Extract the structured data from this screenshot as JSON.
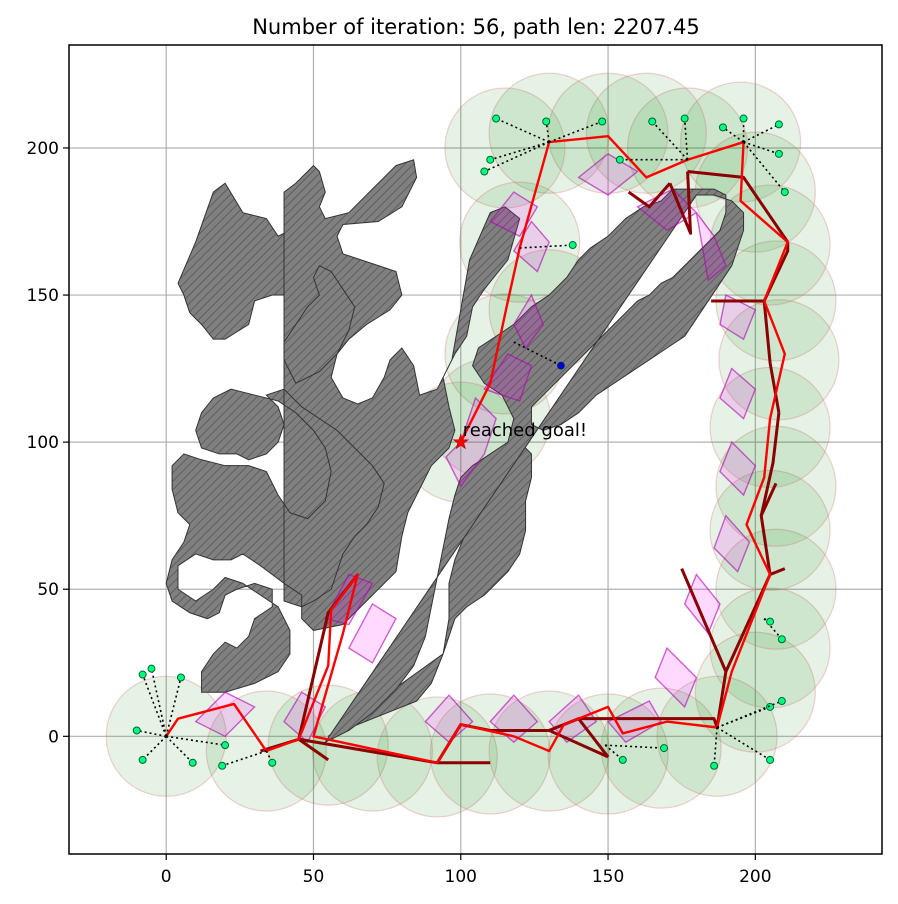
{
  "chart_data": {
    "type": "scatter",
    "title": "Number of iteration: 56, path len: 2207.45",
    "xlabel": "",
    "ylabel": "",
    "xlim": [
      -33,
      243
    ],
    "ylim": [
      -40,
      235
    ],
    "x_ticks": [
      0,
      50,
      100,
      150,
      200
    ],
    "y_ticks": [
      0,
      50,
      100,
      150,
      200
    ],
    "x_tick_labels": [
      "0",
      "50",
      "100",
      "150",
      "200"
    ],
    "y_tick_labels": [
      "0",
      "50",
      "100",
      "150",
      "200"
    ],
    "grid": true,
    "annotation": "reached goal!",
    "goal": [
      100,
      100
    ],
    "colors": {
      "obstacle_fill": "#808080",
      "path": "#ff0000",
      "tree": "#8b0000",
      "node": "#00ff7f",
      "region": "#008000",
      "bubble": "#ff00ff",
      "goal": "#ff0000"
    },
    "obstacles": [
      [
        [
          4,
          154
        ],
        [
          10,
          168
        ],
        [
          16,
          185
        ],
        [
          20,
          188
        ],
        [
          26,
          178
        ],
        [
          34,
          176
        ],
        [
          38,
          170
        ],
        [
          42,
          172
        ],
        [
          46,
          168
        ],
        [
          42,
          160
        ],
        [
          46,
          154
        ],
        [
          42,
          150
        ],
        [
          36,
          150
        ],
        [
          30,
          148
        ],
        [
          28,
          140
        ],
        [
          20,
          135
        ],
        [
          16,
          135
        ],
        [
          12,
          140
        ],
        [
          8,
          144
        ],
        [
          6,
          150
        ]
      ],
      [
        [
          40,
          185
        ],
        [
          44,
          188
        ],
        [
          48,
          192
        ],
        [
          50,
          194
        ],
        [
          52,
          192
        ],
        [
          54,
          185
        ],
        [
          52,
          180
        ],
        [
          54,
          176
        ],
        [
          62,
          178
        ],
        [
          70,
          186
        ],
        [
          78,
          194
        ],
        [
          84,
          196
        ],
        [
          85,
          190
        ],
        [
          80,
          180
        ],
        [
          72,
          175
        ],
        [
          60,
          174
        ],
        [
          58,
          170
        ],
        [
          60,
          164
        ],
        [
          72,
          160
        ],
        [
          78,
          158
        ],
        [
          80,
          150
        ],
        [
          76,
          145
        ],
        [
          68,
          140
        ],
        [
          62,
          135
        ],
        [
          58,
          130
        ],
        [
          56,
          122
        ],
        [
          60,
          115
        ],
        [
          65,
          113
        ],
        [
          70,
          115
        ],
        [
          74,
          122
        ],
        [
          76,
          128
        ],
        [
          80,
          132
        ],
        [
          84,
          126
        ],
        [
          86,
          116
        ],
        [
          92,
          118
        ],
        [
          97,
          128
        ],
        [
          100,
          145
        ],
        [
          103,
          162
        ],
        [
          110,
          178
        ],
        [
          115,
          180
        ],
        [
          120,
          176
        ],
        [
          116,
          162
        ],
        [
          108,
          152
        ],
        [
          104,
          146
        ],
        [
          102,
          136
        ],
        [
          98,
          130
        ],
        [
          94,
          122
        ],
        [
          96,
          112
        ],
        [
          98,
          104
        ],
        [
          96,
          98
        ],
        [
          90,
          92
        ],
        [
          86,
          84
        ],
        [
          82,
          76
        ],
        [
          80,
          68
        ],
        [
          78,
          56
        ],
        [
          70,
          48
        ],
        [
          60,
          38
        ],
        [
          50,
          36
        ],
        [
          46,
          40
        ],
        [
          46,
          48
        ],
        [
          40,
          52
        ],
        [
          32,
          58
        ],
        [
          26,
          62
        ],
        [
          22,
          60
        ],
        [
          16,
          60
        ],
        [
          10,
          62
        ],
        [
          4,
          58
        ],
        [
          4,
          50
        ],
        [
          10,
          46
        ],
        [
          16,
          50
        ],
        [
          20,
          54
        ],
        [
          26,
          52
        ],
        [
          32,
          48
        ],
        [
          38,
          44
        ],
        [
          42,
          36
        ],
        [
          42,
          28
        ],
        [
          38,
          22
        ],
        [
          30,
          18
        ],
        [
          20,
          15
        ],
        [
          12,
          15
        ],
        [
          12,
          22
        ],
        [
          16,
          28
        ],
        [
          20,
          32
        ],
        [
          24,
          30
        ],
        [
          28,
          34
        ],
        [
          30,
          40
        ],
        [
          36,
          44
        ],
        [
          36,
          50
        ],
        [
          30,
          52
        ],
        [
          24,
          50
        ],
        [
          20,
          48
        ],
        [
          18,
          42
        ],
        [
          14,
          40
        ],
        [
          8,
          42
        ],
        [
          2,
          46
        ],
        [
          0,
          52
        ],
        [
          2,
          60
        ],
        [
          6,
          66
        ],
        [
          8,
          72
        ],
        [
          4,
          76
        ],
        [
          2,
          84
        ],
        [
          2,
          92
        ],
        [
          6,
          96
        ],
        [
          12,
          94
        ],
        [
          20,
          92
        ],
        [
          28,
          92
        ],
        [
          34,
          90
        ],
        [
          38,
          82
        ],
        [
          42,
          76
        ],
        [
          48,
          74
        ],
        [
          54,
          80
        ],
        [
          56,
          90
        ],
        [
          54,
          98
        ],
        [
          50,
          104
        ],
        [
          44,
          110
        ],
        [
          38,
          114
        ],
        [
          30,
          116
        ],
        [
          22,
          118
        ],
        [
          16,
          115
        ],
        [
          12,
          110
        ],
        [
          10,
          104
        ],
        [
          12,
          98
        ],
        [
          18,
          96
        ],
        [
          24,
          96
        ],
        [
          28,
          94
        ],
        [
          34,
          96
        ],
        [
          38,
          100
        ],
        [
          40,
          106
        ],
        [
          38,
          112
        ],
        [
          34,
          116
        ],
        [
          40,
          118
        ],
        [
          46,
          112
        ],
        [
          52,
          108
        ],
        [
          58,
          104
        ],
        [
          64,
          98
        ],
        [
          70,
          92
        ],
        [
          74,
          86
        ],
        [
          72,
          78
        ],
        [
          68,
          72
        ],
        [
          64,
          68
        ],
        [
          60,
          62
        ],
        [
          58,
          56
        ],
        [
          56,
          50
        ],
        [
          50,
          46
        ],
        [
          46,
          44
        ],
        [
          40,
          46
        ]
      ],
      [
        [
          44,
          120
        ],
        [
          52,
          124
        ],
        [
          58,
          130
        ],
        [
          62,
          138
        ],
        [
          64,
          146
        ],
        [
          60,
          152
        ],
        [
          56,
          158
        ],
        [
          52,
          160
        ],
        [
          50,
          156
        ],
        [
          52,
          150
        ],
        [
          48,
          146
        ],
        [
          44,
          140
        ],
        [
          40,
          134
        ],
        [
          40,
          128
        ]
      ],
      [
        [
          55,
          0
        ],
        [
          65,
          4
        ],
        [
          75,
          8
        ],
        [
          85,
          12
        ],
        [
          90,
          18
        ],
        [
          94,
          28
        ],
        [
          96,
          40
        ],
        [
          96,
          52
        ],
        [
          98,
          60
        ],
        [
          102,
          70
        ],
        [
          104,
          78
        ],
        [
          106,
          84
        ],
        [
          108,
          90
        ],
        [
          112,
          95
        ],
        [
          116,
          98
        ],
        [
          120,
          100
        ],
        [
          124,
          96
        ],
        [
          124,
          88
        ],
        [
          122,
          80
        ],
        [
          122,
          70
        ],
        [
          120,
          62
        ],
        [
          116,
          56
        ],
        [
          112,
          52
        ],
        [
          108,
          48
        ],
        [
          102,
          44
        ],
        [
          98,
          40
        ],
        [
          96,
          34
        ],
        [
          94,
          28
        ]
      ],
      [
        [
          54,
          -2
        ],
        [
          62,
          2
        ],
        [
          70,
          8
        ],
        [
          78,
          16
        ],
        [
          84,
          24
        ],
        [
          88,
          34
        ],
        [
          90,
          44
        ],
        [
          92,
          54
        ],
        [
          94,
          64
        ],
        [
          96,
          74
        ],
        [
          98,
          82
        ],
        [
          100,
          88
        ],
        [
          104,
          92
        ],
        [
          110,
          96
        ],
        [
          116,
          100
        ],
        [
          118,
          108
        ],
        [
          114,
          116
        ],
        [
          108,
          120
        ],
        [
          104,
          126
        ],
        [
          106,
          132
        ],
        [
          112,
          136
        ],
        [
          118,
          140
        ],
        [
          124,
          146
        ],
        [
          130,
          150
        ],
        [
          136,
          156
        ],
        [
          140,
          162
        ],
        [
          144,
          166
        ],
        [
          150,
          170
        ],
        [
          156,
          176
        ],
        [
          162,
          180
        ],
        [
          168,
          182
        ],
        [
          172,
          186
        ],
        [
          180,
          186
        ],
        [
          186,
          186
        ],
        [
          190,
          184
        ],
        [
          190,
          178
        ],
        [
          188,
          172
        ],
        [
          184,
          168
        ],
        [
          180,
          164
        ],
        [
          176,
          160
        ],
        [
          172,
          156
        ],
        [
          168,
          154
        ],
        [
          164,
          150
        ],
        [
          160,
          148
        ],
        [
          156,
          144
        ],
        [
          152,
          140
        ],
        [
          148,
          136
        ],
        [
          144,
          132
        ],
        [
          140,
          128
        ],
        [
          136,
          124
        ],
        [
          132,
          120
        ],
        [
          128,
          116
        ],
        [
          124,
          112
        ],
        [
          124,
          106
        ],
        [
          128,
          104
        ],
        [
          134,
          106
        ],
        [
          140,
          110
        ],
        [
          146,
          116
        ],
        [
          152,
          120
        ],
        [
          158,
          124
        ],
        [
          164,
          128
        ],
        [
          170,
          132
        ],
        [
          176,
          136
        ],
        [
          180,
          142
        ],
        [
          184,
          148
        ],
        [
          188,
          154
        ],
        [
          192,
          160
        ],
        [
          194,
          166
        ],
        [
          196,
          172
        ],
        [
          196,
          178
        ],
        [
          192,
          182
        ],
        [
          186,
          184
        ],
        [
          180,
          184
        ]
      ]
    ]
  }
}
